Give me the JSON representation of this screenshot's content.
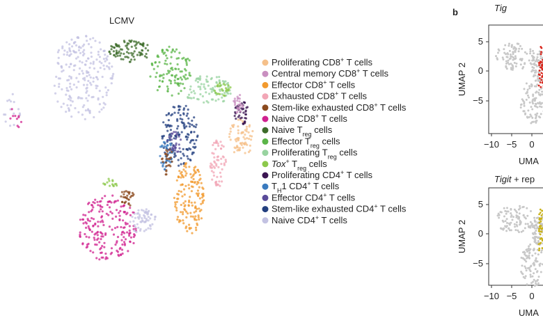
{
  "panel_a": {
    "title": "LCMV",
    "legend": [
      {
        "color": "#f5c08a",
        "parts": [
          {
            "text": "Proliferating CD8"
          },
          {
            "sup": "+"
          },
          {
            "text": " T cells"
          }
        ]
      },
      {
        "color": "#c98fc0",
        "parts": [
          {
            "text": "Central memory CD8"
          },
          {
            "sup": "+"
          },
          {
            "text": " T cells"
          }
        ]
      },
      {
        "color": "#f29a2e",
        "parts": [
          {
            "text": "Effector CD8"
          },
          {
            "sup": "+"
          },
          {
            "text": " T cells"
          }
        ]
      },
      {
        "color": "#f2a6b6",
        "parts": [
          {
            "text": "Exhausted CD8"
          },
          {
            "sup": "+"
          },
          {
            "text": " T cells"
          }
        ]
      },
      {
        "color": "#8b4a1e",
        "parts": [
          {
            "text": "Stem-like exhausted CD8"
          },
          {
            "sup": "+"
          },
          {
            "text": " T cells"
          }
        ]
      },
      {
        "color": "#d0218f",
        "parts": [
          {
            "text": "Naive CD8"
          },
          {
            "sup": "+"
          },
          {
            "text": " T cells"
          }
        ]
      },
      {
        "color": "#3c6b2a",
        "parts": [
          {
            "text": "Naive T"
          },
          {
            "sub": "reg"
          },
          {
            "text": " cells"
          }
        ]
      },
      {
        "color": "#5bb548",
        "parts": [
          {
            "text": "Effector T"
          },
          {
            "sub": "reg"
          },
          {
            "text": " cells"
          }
        ]
      },
      {
        "color": "#98d3a0",
        "parts": [
          {
            "text": "Proliferating T"
          },
          {
            "sub": "reg"
          },
          {
            "text": " cells"
          }
        ]
      },
      {
        "color": "#8cc84b",
        "parts": [
          {
            "italic": "Tox"
          },
          {
            "sup": "+"
          },
          {
            "text": " T"
          },
          {
            "sub": "reg"
          },
          {
            "text": " cells"
          }
        ]
      },
      {
        "color": "#3b1552",
        "parts": [
          {
            "text": "Proliferating CD4"
          },
          {
            "sup": "+"
          },
          {
            "text": " T cells"
          }
        ]
      },
      {
        "color": "#3a7bbf",
        "parts": [
          {
            "text": "T"
          },
          {
            "sub": "H"
          },
          {
            "text": "1 CD4"
          },
          {
            "sup": "+"
          },
          {
            "text": " T cells"
          }
        ]
      },
      {
        "color": "#5a4b9a",
        "parts": [
          {
            "text": "Effector CD4"
          },
          {
            "sup": "+"
          },
          {
            "text": " T cells"
          }
        ]
      },
      {
        "color": "#233f7f",
        "parts": [
          {
            "text": "Stem-like exhausted CD4"
          },
          {
            "sup": "+"
          },
          {
            "text": " T cells"
          }
        ]
      },
      {
        "color": "#c3c2e2",
        "parts": [
          {
            "text": "Naive CD4"
          },
          {
            "sup": "+"
          },
          {
            "text": " T cells"
          }
        ]
      }
    ]
  },
  "panel_b": {
    "label": "b",
    "top": {
      "title_parts": [
        {
          "italic": "Tig"
        }
      ],
      "ylabel": "UMAP 2",
      "yticks": [
        "5",
        "0",
        "−5"
      ],
      "xticks": [
        "−10",
        "−5",
        "0"
      ],
      "xlabel": "UMA"
    },
    "bottom": {
      "title_parts": [
        {
          "italic": "Tigit"
        },
        {
          "text": " + rep"
        }
      ],
      "ylabel": "UMAP 2",
      "yticks": [
        "5",
        "0",
        "−5"
      ],
      "xticks": [
        "−10",
        "−5",
        "0"
      ],
      "xlabel": "UMA"
    }
  }
}
